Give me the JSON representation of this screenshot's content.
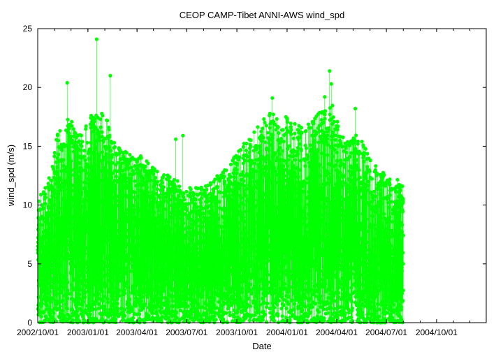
{
  "chart_data": {
    "type": "scatter",
    "title": "CEOP CAMP-Tibet ANNI-AWS  wind_spd",
    "xlabel": "Date",
    "ylabel": "wind_spd (m/s)",
    "x_ticks": [
      "2002/10/01",
      "2003/01/01",
      "2003/04/01",
      "2003/07/01",
      "2003/10/01",
      "2004/01/01",
      "2004/04/01",
      "2004/07/01",
      "2004/10/01"
    ],
    "y_ticks": [
      0,
      5,
      10,
      15,
      20,
      25
    ],
    "xlim": [
      "2002/10/01",
      "2004/12/31"
    ],
    "ylim": [
      0,
      25
    ],
    "data_range": [
      "2002/10/01",
      "2004/08/01"
    ],
    "series_color": "#00ff00",
    "line_connected": true,
    "peaks": [
      {
        "date": "2003/01/17",
        "value": 24.1
      },
      {
        "date": "2003/02/11",
        "value": 21.0
      },
      {
        "date": "2002/11/24",
        "value": 20.4
      },
      {
        "date": "2003/12/05",
        "value": 19.1
      },
      {
        "date": "2004/03/10",
        "value": 19.2
      },
      {
        "date": "2004/03/19",
        "value": 21.4
      },
      {
        "date": "2004/03/22",
        "value": 20.3
      },
      {
        "date": "2004/05/05",
        "value": 18.2
      },
      {
        "date": "2003/06/11",
        "value": 15.6
      },
      {
        "date": "2003/06/24",
        "value": 15.9
      }
    ],
    "envelope": [
      {
        "date": "2002/10/01",
        "max": 10.5
      },
      {
        "date": "2002/10/20",
        "max": 12.0
      },
      {
        "date": "2002/11/10",
        "max": 17.0
      },
      {
        "date": "2002/12/01",
        "max": 17.5
      },
      {
        "date": "2002/12/20",
        "max": 16.0
      },
      {
        "date": "2003/01/10",
        "max": 18.0
      },
      {
        "date": "2003/02/01",
        "max": 17.8
      },
      {
        "date": "2003/02/20",
        "max": 15.5
      },
      {
        "date": "2003/03/15",
        "max": 14.5
      },
      {
        "date": "2003/04/10",
        "max": 14.2
      },
      {
        "date": "2003/05/05",
        "max": 13.0
      },
      {
        "date": "2003/06/01",
        "max": 12.5
      },
      {
        "date": "2003/07/01",
        "max": 11.5
      },
      {
        "date": "2003/08/01",
        "max": 11.5
      },
      {
        "date": "2003/09/01",
        "max": 12.8
      },
      {
        "date": "2003/10/01",
        "max": 14.5
      },
      {
        "date": "2003/11/01",
        "max": 16.5
      },
      {
        "date": "2003/12/01",
        "max": 18.0
      },
      {
        "date": "2004/01/01",
        "max": 17.5
      },
      {
        "date": "2004/02/01",
        "max": 16.5
      },
      {
        "date": "2004/03/01",
        "max": 18.0
      },
      {
        "date": "2004/03/25",
        "max": 18.5
      },
      {
        "date": "2004/04/15",
        "max": 15.5
      },
      {
        "date": "2004/05/10",
        "max": 16.0
      },
      {
        "date": "2004/06/10",
        "max": 13.5
      },
      {
        "date": "2004/07/01",
        "max": 12.5
      },
      {
        "date": "2004/08/01",
        "max": 12.0
      }
    ]
  }
}
